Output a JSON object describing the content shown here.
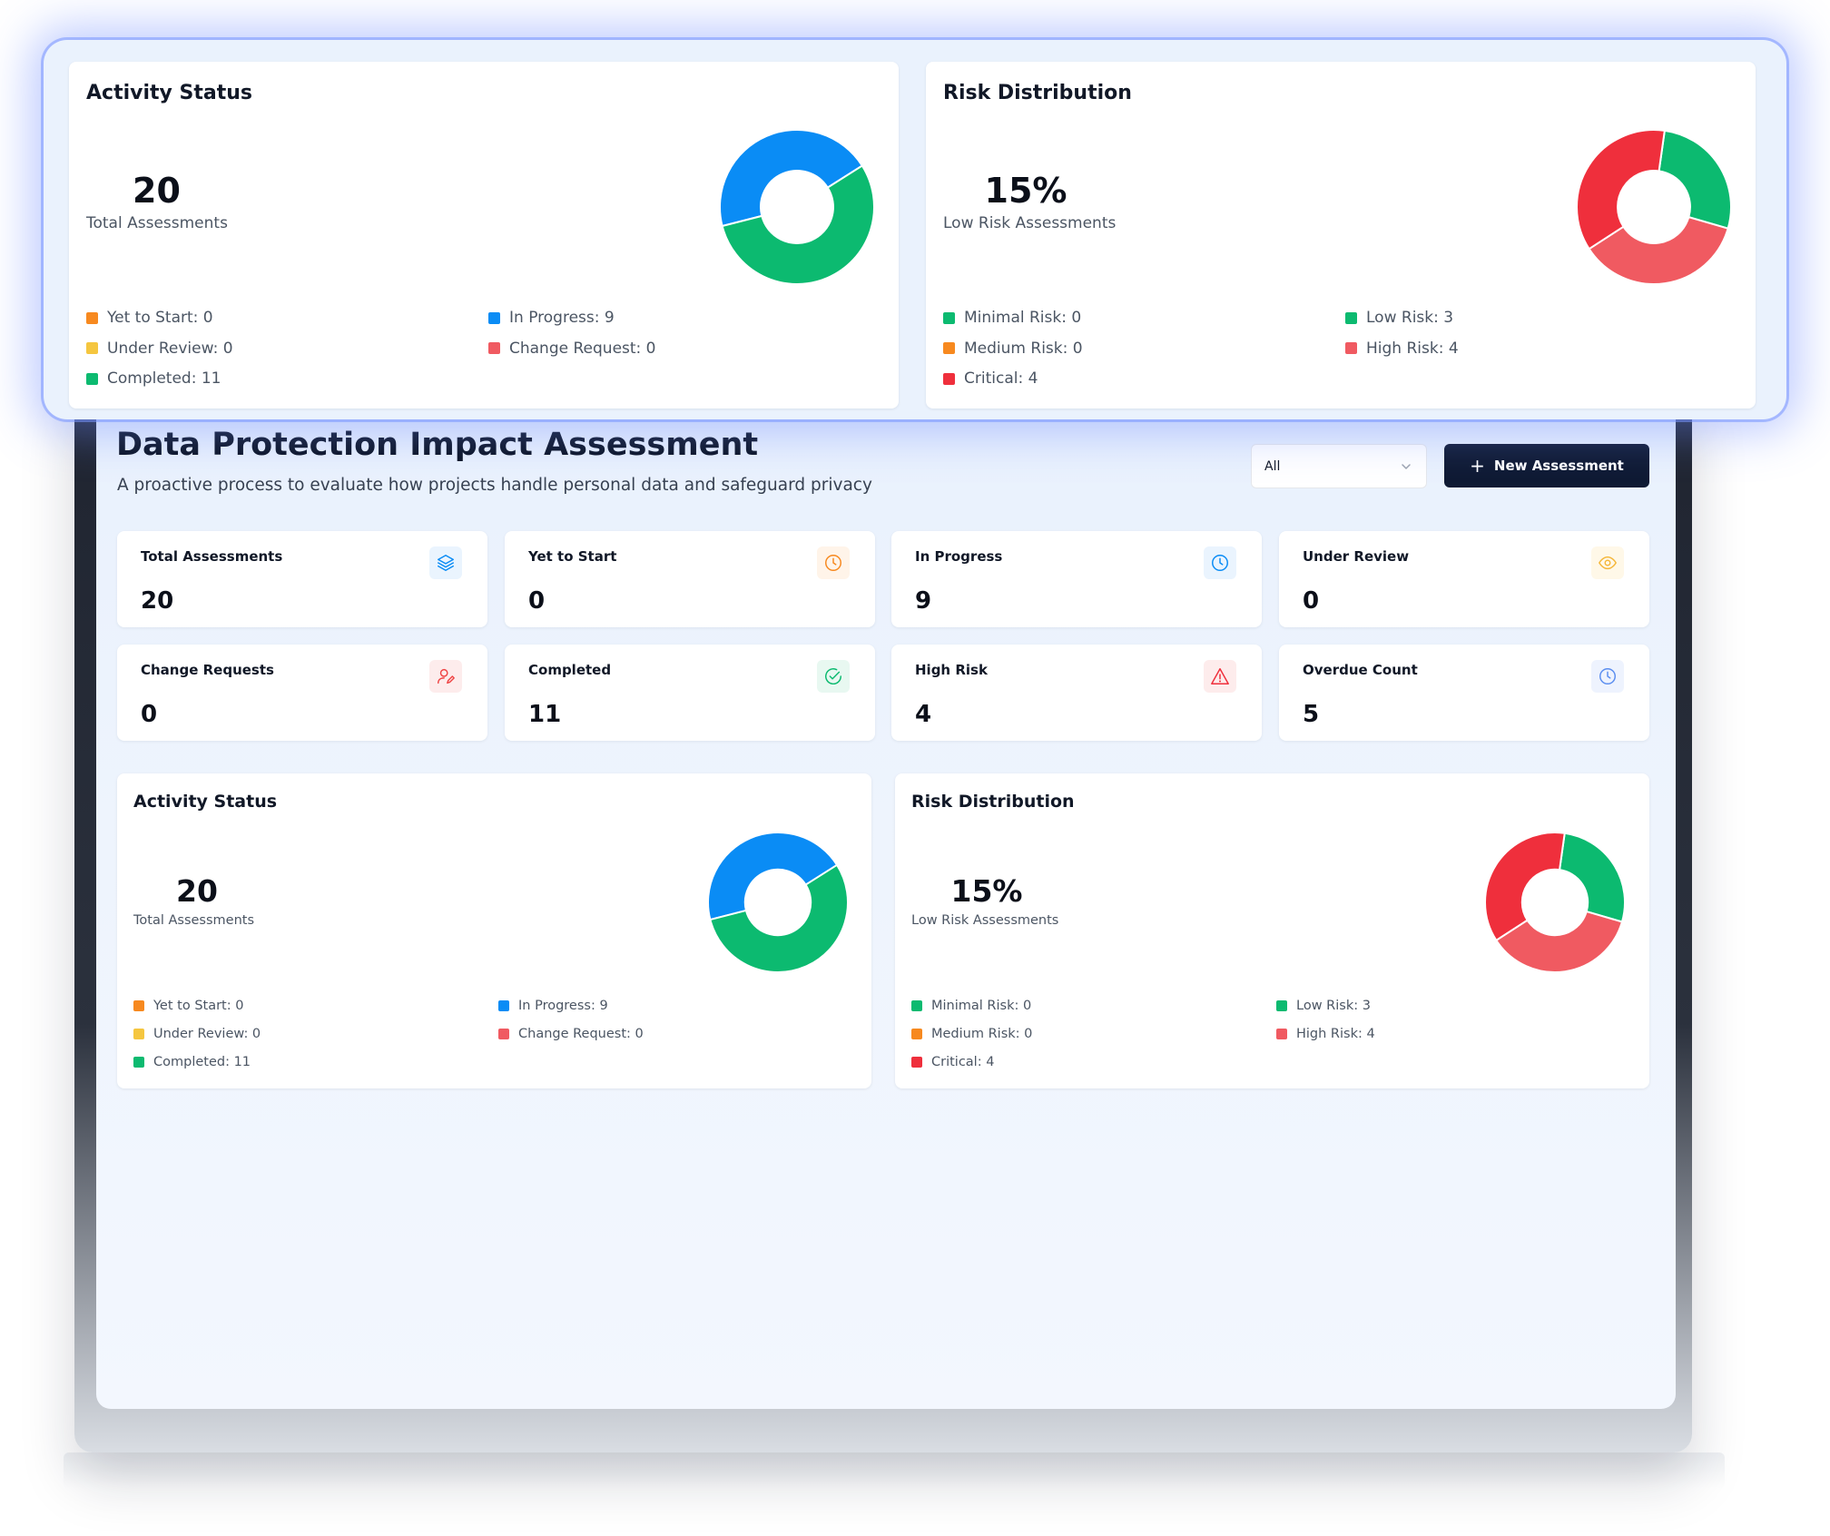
{
  "overlay": {
    "activity": {
      "title": "Activity Status",
      "total": "20",
      "total_label": "Total Assessments",
      "legend": [
        {
          "label": "Yet to Start: 0",
          "color": "#f7891f"
        },
        {
          "label": "In Progress: 9",
          "color": "#0a8cf5"
        },
        {
          "label": "Under Review: 0",
          "color": "#f5c63f"
        },
        {
          "label": "Change Request: 0",
          "color": "#f05a61"
        },
        {
          "label": "Completed: 11",
          "color": "#0cba70"
        }
      ]
    },
    "risk": {
      "title": "Risk Distribution",
      "percent": "15%",
      "percent_label": "Low Risk Assessments",
      "legend": [
        {
          "label": "Minimal Risk: 0",
          "color": "#0cba70"
        },
        {
          "label": "Low Risk: 3",
          "color": "#0cba70"
        },
        {
          "label": "Medium Risk: 0",
          "color": "#f7891f"
        },
        {
          "label": "High Risk: 4",
          "color": "#f05a61"
        },
        {
          "label": "Critical: 4",
          "color": "#ef2f3c"
        }
      ]
    }
  },
  "header": {
    "title": "Data Protection Impact Assessment",
    "description": "A proactive process to evaluate how projects handle personal data and safeguard privacy",
    "filter_value": "All",
    "new_button": "New Assessment"
  },
  "stats": [
    {
      "label": "Total Assessments",
      "value": "20",
      "icon": "layers-icon",
      "color": "#0a8cf5"
    },
    {
      "label": "Yet to Start",
      "value": "0",
      "icon": "clock-icon",
      "color": "#f7891f"
    },
    {
      "label": "In Progress",
      "value": "9",
      "icon": "clock-icon",
      "color": "#0a8cf5"
    },
    {
      "label": "Under Review",
      "value": "0",
      "icon": "eye-icon",
      "color": "#f5b73a"
    },
    {
      "label": "Change Requests",
      "value": "0",
      "icon": "user-edit-icon",
      "color": "#ef4444"
    },
    {
      "label": "Completed",
      "value": "11",
      "icon": "check-circle-icon",
      "color": "#0cba70"
    },
    {
      "label": "High Risk",
      "value": "4",
      "icon": "warning-icon",
      "color": "#ef2f3c"
    },
    {
      "label": "Overdue Count",
      "value": "5",
      "icon": "clock-icon",
      "color": "#5b8ef0"
    }
  ],
  "activity": {
    "title": "Activity Status",
    "total": "20",
    "total_label": "Total Assessments",
    "legend": [
      {
        "label": "Yet to Start: 0",
        "color": "#f7891f"
      },
      {
        "label": "In Progress: 9",
        "color": "#0a8cf5"
      },
      {
        "label": "Under Review: 0",
        "color": "#f5c63f"
      },
      {
        "label": "Change Request: 0",
        "color": "#f05a61"
      },
      {
        "label": "Completed: 11",
        "color": "#0cba70"
      }
    ]
  },
  "risk": {
    "title": "Risk Distribution",
    "percent": "15%",
    "percent_label": "Low Risk Assessments",
    "legend": [
      {
        "label": "Minimal Risk: 0",
        "color": "#0cba70"
      },
      {
        "label": "Low Risk: 3",
        "color": "#0cba70"
      },
      {
        "label": "Medium Risk: 0",
        "color": "#f7891f"
      },
      {
        "label": "High Risk: 4",
        "color": "#f05a61"
      },
      {
        "label": "Critical: 4",
        "color": "#ef2f3c"
      }
    ]
  },
  "chart_data": [
    {
      "type": "pie",
      "title": "Activity Status",
      "categories": [
        "Yet to Start",
        "In Progress",
        "Under Review",
        "Change Request",
        "Completed"
      ],
      "values": [
        0,
        9,
        0,
        0,
        11
      ],
      "colors": [
        "#f7891f",
        "#0a8cf5",
        "#f5c63f",
        "#f05a61",
        "#0cba70"
      ]
    },
    {
      "type": "pie",
      "title": "Risk Distribution",
      "categories": [
        "Minimal Risk",
        "Low Risk",
        "Medium Risk",
        "High Risk",
        "Critical"
      ],
      "values": [
        0,
        3,
        0,
        4,
        4
      ],
      "colors": [
        "#0cba70",
        "#0cba70",
        "#f7891f",
        "#f05a61",
        "#ef2f3c"
      ]
    }
  ]
}
